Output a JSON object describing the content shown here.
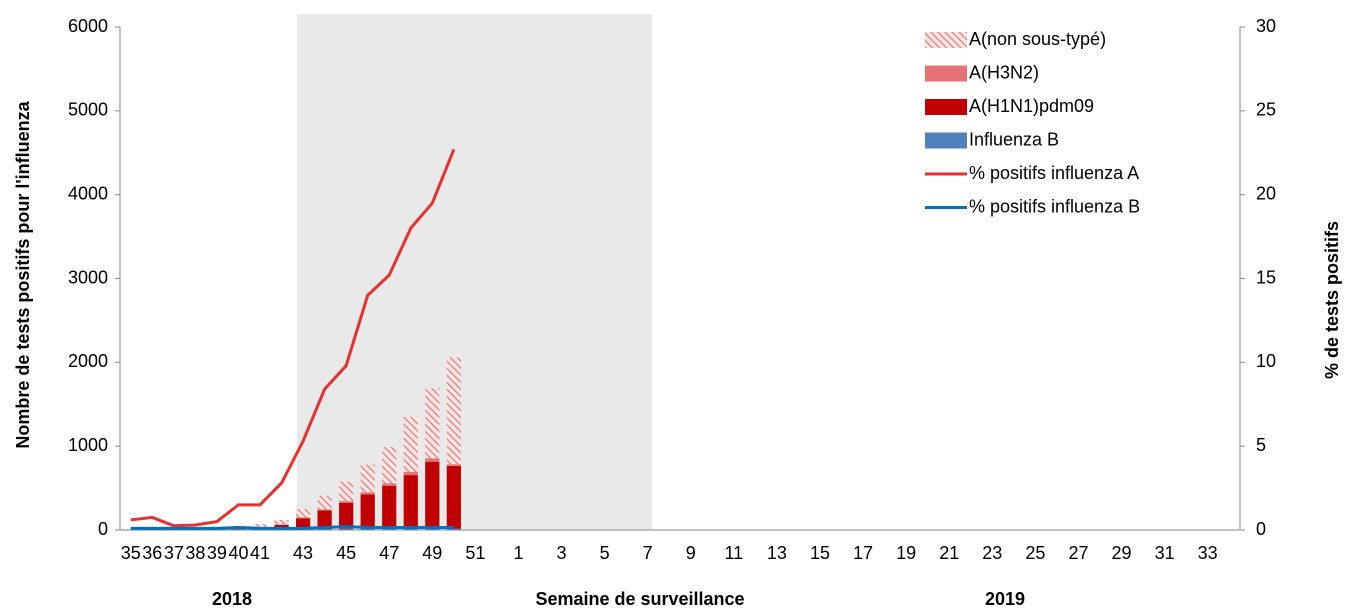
{
  "chart_data": {
    "type": "bar",
    "y_label": "Nombre de tests positifs pour l'influenza",
    "y2_label": "% de tests positifs",
    "x_label": "Semaine de surveillance",
    "annotations": [
      "2018",
      "2019"
    ],
    "categories": [
      "35",
      "36",
      "37",
      "38",
      "39",
      "40",
      "41",
      null,
      "43",
      null,
      "45",
      null,
      "47",
      null,
      "49",
      null,
      "51",
      null,
      "1",
      null,
      "3",
      null,
      "5",
      null,
      "7",
      null,
      "9",
      null,
      "11",
      null,
      "13",
      null,
      "15",
      null,
      "17",
      null,
      "19",
      null,
      "21",
      null,
      "23",
      null,
      "25",
      null,
      "27",
      null,
      "29",
      null,
      "31",
      null,
      "33",
      null
    ],
    "series": [
      {
        "name": "A(non sous-typé)",
        "color": "#e07070",
        "hatch": true,
        "values": [
          0,
          0,
          0,
          0,
          0,
          30,
          39,
          55,
          100,
          163,
          235,
          330,
          435,
          655,
          835,
          1275,
          null,
          null,
          null,
          null,
          null,
          null,
          null,
          null,
          null,
          null,
          null,
          null,
          null,
          null,
          null,
          null,
          null,
          null,
          null,
          null,
          null,
          null,
          null,
          null,
          null,
          null,
          null,
          null,
          null,
          null,
          null,
          null,
          null,
          null,
          null,
          null
        ]
      },
      {
        "name": "A(H3N2)",
        "color": "#e57373",
        "values": [
          0,
          0,
          0,
          0,
          0,
          2,
          3,
          5,
          10,
          15,
          20,
          25,
          30,
          40,
          40,
          20,
          null,
          null,
          null,
          null,
          null,
          null,
          null,
          null,
          null,
          null,
          null,
          null,
          null,
          null,
          null,
          null,
          null,
          null,
          null,
          null,
          null,
          null,
          null,
          null,
          null,
          null,
          null,
          null,
          null,
          null,
          null,
          null,
          null,
          null,
          null,
          null
        ]
      },
      {
        "name": "A(H1N1)pdm09",
        "color": "#c00000",
        "values": [
          0,
          0,
          0,
          0,
          0,
          10,
          20,
          50,
          130,
          220,
          310,
          410,
          510,
          640,
          800,
          750,
          null,
          null,
          null,
          null,
          null,
          null,
          null,
          null,
          null,
          null,
          null,
          null,
          null,
          null,
          null,
          null,
          null,
          null,
          null,
          null,
          null,
          null,
          null,
          null,
          null,
          null,
          null,
          null,
          null,
          null,
          null,
          null,
          null,
          null,
          null,
          null
        ]
      },
      {
        "name": "Influenza B",
        "color": "#4f81bd",
        "values": [
          5,
          5,
          5,
          5,
          5,
          8,
          8,
          10,
          10,
          12,
          15,
          15,
          15,
          15,
          15,
          15,
          null,
          null,
          null,
          null,
          null,
          null,
          null,
          null,
          null,
          null,
          null,
          null,
          null,
          null,
          null,
          null,
          null,
          null,
          null,
          null,
          null,
          null,
          null,
          null,
          null,
          null,
          null,
          null,
          null,
          null,
          null,
          null,
          null,
          null,
          null,
          null
        ]
      },
      {
        "name": "% positifs influenza A",
        "color": "#e8302f",
        "type": "line",
        "axis": "y2",
        "values": [
          0.6,
          0.75,
          0.25,
          0.3,
          0.5,
          1.5,
          1.5,
          2.8,
          5.3,
          8.4,
          9.8,
          14,
          15.2,
          18,
          19.5,
          22.7,
          null,
          null,
          null,
          null,
          null,
          null,
          null,
          null,
          null,
          null,
          null,
          null,
          null,
          null,
          null,
          null,
          null,
          null,
          null,
          null,
          null,
          null,
          null,
          null,
          null,
          null,
          null,
          null,
          null,
          null,
          null,
          null,
          null,
          null,
          null,
          null
        ]
      },
      {
        "name": "% positifs influenza B",
        "color": "#0070c0",
        "type": "line",
        "axis": "y2",
        "values": [
          0.1,
          0.1,
          0.1,
          0.1,
          0.1,
          0.15,
          0.1,
          0.1,
          0.1,
          0.15,
          0.2,
          0.15,
          0.15,
          0.15,
          0.15,
          0.15,
          null,
          null,
          null,
          null,
          null,
          null,
          null,
          null,
          null,
          null,
          null,
          null,
          null,
          null,
          null,
          null,
          null,
          null,
          null,
          null,
          null,
          null,
          null,
          null,
          null,
          null,
          null,
          null,
          null,
          null,
          null,
          null,
          null,
          null,
          null,
          null
        ]
      }
    ],
    "ylim": [
      0,
      6000
    ],
    "yticks": [
      0,
      1000,
      2000,
      3000,
      4000,
      5000,
      6000
    ],
    "y2lim": [
      0,
      30
    ],
    "y2ticks": [
      0,
      5,
      10,
      15,
      20,
      25,
      30
    ],
    "legend": "top-right"
  }
}
